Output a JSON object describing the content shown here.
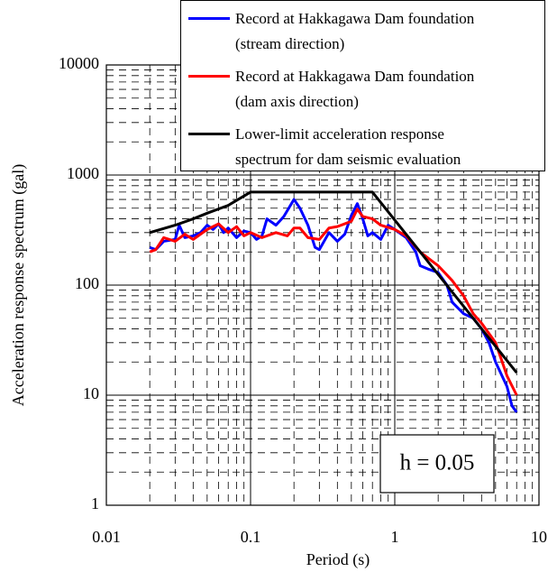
{
  "chart_data": {
    "type": "line",
    "xlabel": "Period (s)",
    "ylabel": "Acceleration response spectrum (gal)",
    "xlog": true,
    "ylog": true,
    "grid": true,
    "xlim": [
      0.01,
      10
    ],
    "ylim": [
      1,
      10000
    ],
    "xticks": [
      0.01,
      0.1,
      1,
      10
    ],
    "yticks": [
      1,
      10,
      100,
      1000,
      10000
    ],
    "legend": "upper right",
    "annotation": "h = 0.05",
    "series": [
      {
        "name": "Record at Hakkagawa Dam foundation\n(stream direction)",
        "color": "#0000ff",
        "x": [
          0.02,
          0.022,
          0.025,
          0.03,
          0.032,
          0.035,
          0.04,
          0.045,
          0.05,
          0.055,
          0.06,
          0.065,
          0.07,
          0.08,
          0.09,
          0.1,
          0.11,
          0.12,
          0.13,
          0.15,
          0.17,
          0.2,
          0.22,
          0.25,
          0.28,
          0.3,
          0.35,
          0.4,
          0.45,
          0.5,
          0.55,
          0.6,
          0.65,
          0.7,
          0.8,
          0.9,
          1.0,
          1.2,
          1.4,
          1.5,
          1.7,
          2.0,
          2.3,
          2.5,
          3.0,
          3.5,
          4.0,
          4.5,
          5.0,
          6.0,
          6.5,
          7.0
        ],
        "values": [
          220,
          210,
          250,
          260,
          350,
          270,
          280,
          300,
          350,
          320,
          360,
          300,
          330,
          270,
          310,
          300,
          260,
          280,
          400,
          350,
          420,
          600,
          500,
          350,
          220,
          210,
          300,
          250,
          290,
          430,
          550,
          400,
          280,
          300,
          260,
          350,
          320,
          270,
          200,
          150,
          140,
          130,
          100,
          70,
          55,
          50,
          40,
          30,
          20,
          12,
          8,
          7
        ]
      },
      {
        "name": "Record at Hakkagawa Dam foundation\n(dam axis direction)",
        "color": "#ff0000",
        "x": [
          0.02,
          0.022,
          0.025,
          0.03,
          0.035,
          0.04,
          0.05,
          0.06,
          0.07,
          0.08,
          0.09,
          0.1,
          0.12,
          0.15,
          0.18,
          0.2,
          0.22,
          0.25,
          0.3,
          0.35,
          0.4,
          0.5,
          0.55,
          0.6,
          0.7,
          0.8,
          1.0,
          1.2,
          1.5,
          2.0,
          2.5,
          3.0,
          3.5,
          4.0,
          5.0,
          6.0,
          7.0
        ],
        "values": [
          200,
          210,
          270,
          250,
          290,
          260,
          320,
          360,
          300,
          340,
          280,
          300,
          270,
          300,
          280,
          330,
          330,
          270,
          260,
          330,
          340,
          380,
          490,
          420,
          400,
          350,
          320,
          280,
          200,
          150,
          110,
          80,
          55,
          45,
          30,
          15,
          10
        ]
      },
      {
        "name": "Lower-limit acceleration response\nspectrum for dam seismic evaluation",
        "color": "#000000",
        "x": [
          0.02,
          0.03,
          0.04,
          0.05,
          0.07,
          0.1,
          0.7,
          7.0
        ],
        "values": [
          300,
          350,
          400,
          450,
          530,
          700,
          700,
          16
        ]
      }
    ]
  }
}
